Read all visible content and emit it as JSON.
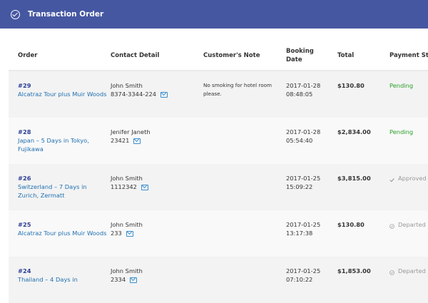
{
  "header": {
    "title": "Transaction Order",
    "icon": "check-circle-icon"
  },
  "columns": [
    "Order",
    "Contact Detail",
    "Customer's Note",
    "Booking Date",
    "Total",
    "Payment Sta"
  ],
  "colors": {
    "header_bg": "#4657a2",
    "pending": "#2aa02a",
    "link": "#1e6fb0",
    "order_id": "#2d3e95"
  },
  "rows": [
    {
      "id": "#29",
      "title": "Alcatraz Tour plus Muir Woods",
      "name": "John Smith",
      "phone": "8374-3344-224",
      "note": "No smoking for hotel room please.",
      "date": "2017-01-28",
      "time": "08:48:05",
      "total": "$130.80",
      "status": "Pending",
      "status_icon": ""
    },
    {
      "id": "#28",
      "title": "Japan – 5 Days in Tokyo, Fujikawa",
      "name": "Jenifer Janeth",
      "phone": "23421",
      "note": "",
      "date": "2017-01-28",
      "time": "05:54:40",
      "total": "$2,834.00",
      "status": "Pending",
      "status_icon": ""
    },
    {
      "id": "#26",
      "title": "Switzerland – 7 Days in Zurich, Zermatt",
      "name": "John Smith",
      "phone": "1112342",
      "note": "",
      "date": "2017-01-25",
      "time": "15:09:22",
      "total": "$3,815.00",
      "status": "Approved",
      "status_icon": "check-icon"
    },
    {
      "id": "#25",
      "title": "Alcatraz Tour plus Muir Woods",
      "name": "John Smith",
      "phone": "233",
      "note": "",
      "date": "2017-01-25",
      "time": "13:17:38",
      "total": "$130.80",
      "status": "Departed",
      "status_icon": "check-circle-icon"
    },
    {
      "id": "#24",
      "title": "Thailand – 4 Days in",
      "name": "John Smith",
      "phone": "2334",
      "note": "",
      "date": "2017-01-25",
      "time": "07:10:22",
      "total": "$1,853.00",
      "status": "Departed",
      "status_icon": "check-circle-icon"
    }
  ]
}
